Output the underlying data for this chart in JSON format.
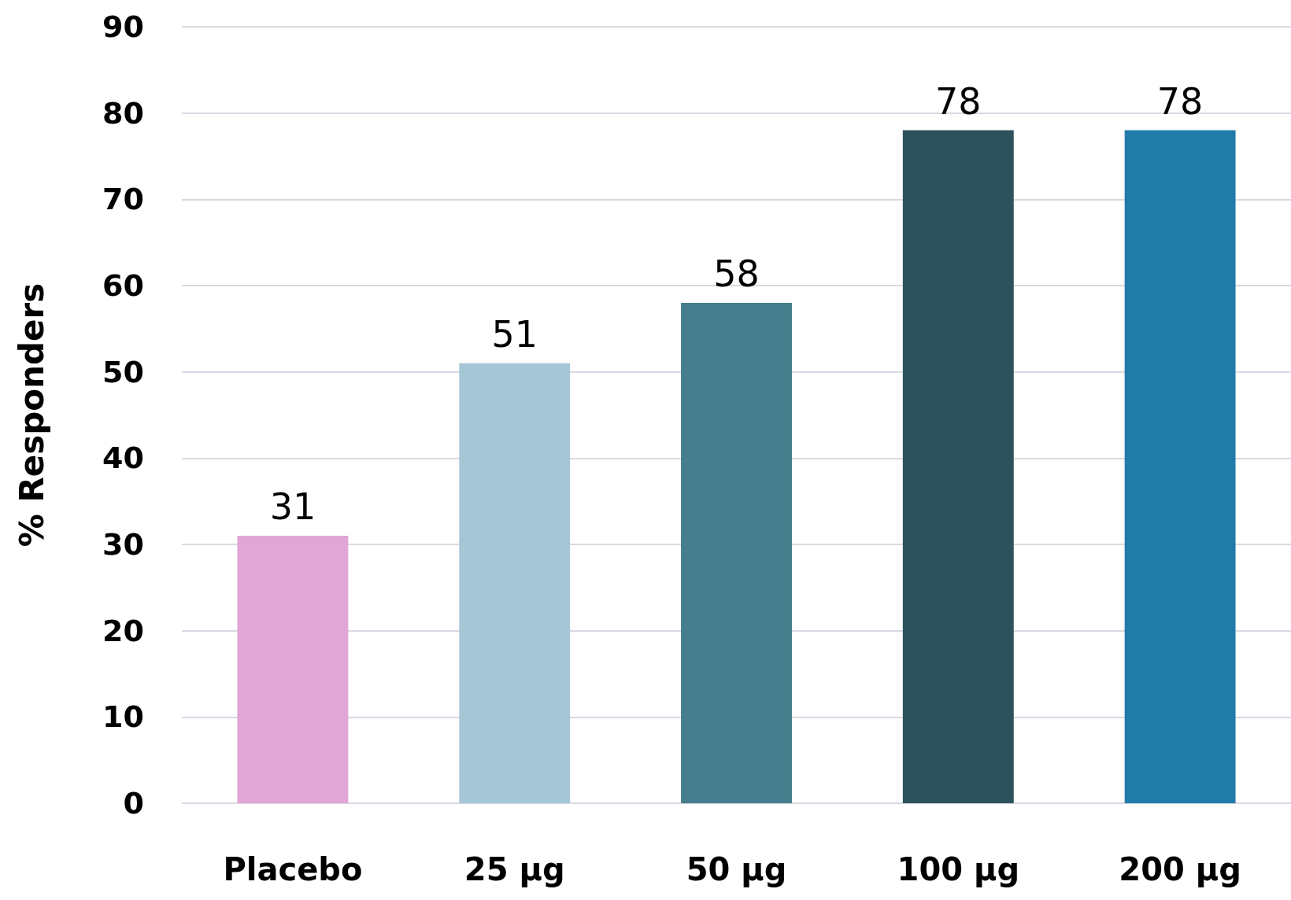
{
  "chart_data": {
    "type": "bar",
    "ylabel": "% Responders",
    "categories": [
      "Placebo",
      "25 µg",
      "50 µg",
      "100 µg",
      "200 µg"
    ],
    "values": [
      31,
      51,
      58,
      78,
      78
    ],
    "colors": [
      "#e1a6d6",
      "#a5c7d5",
      "#457e8d",
      "#2e525d",
      "#217ba8"
    ],
    "ylim": [
      0,
      90
    ],
    "yticks": [
      0,
      10,
      20,
      30,
      40,
      50,
      60,
      70,
      80,
      90
    ],
    "grid": "y",
    "data_labels": true
  }
}
